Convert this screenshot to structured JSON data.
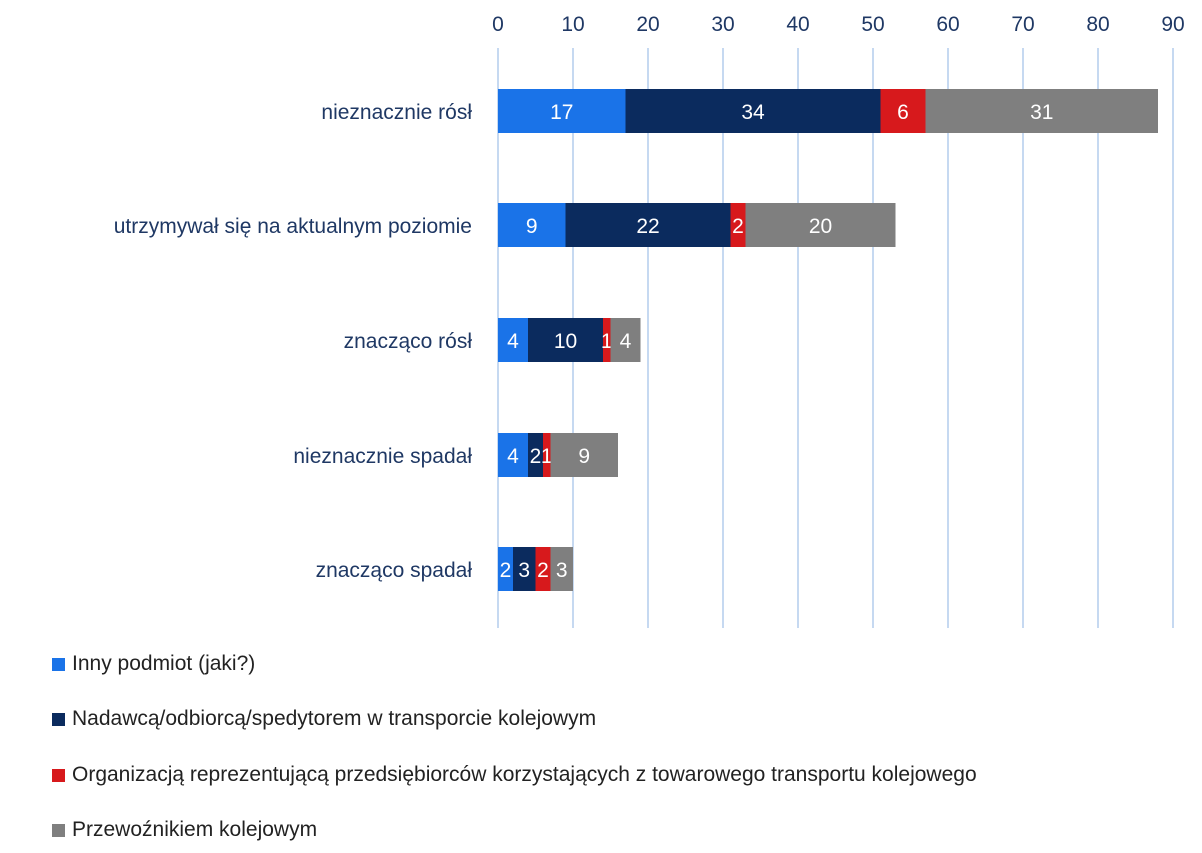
{
  "chart_data": {
    "type": "bar",
    "orientation": "horizontal",
    "stacked": true,
    "categories": [
      "nieznacznie rósł",
      "utrzymywał się na aktualnym poziomie",
      "znacząco rósł",
      "nieznacznie spadał",
      "znacząco spadał"
    ],
    "series": [
      {
        "name": "Inny podmiot (jaki?)",
        "color": "#1a73e8",
        "values": [
          17,
          9,
          4,
          4,
          2
        ]
      },
      {
        "name": "Nadawcą/odbiorcą/spedytorem w transporcie kolejowym",
        "color": "#0b2b5e",
        "values": [
          34,
          22,
          10,
          2,
          3
        ]
      },
      {
        "name": "Organizacją reprezentującą przedsiębiorców korzystających z towarowego transportu kolejowego",
        "color": "#d7191c",
        "values": [
          6,
          2,
          1,
          1,
          2
        ]
      },
      {
        "name": "Przewoźnikiem kolejowym",
        "color": "#7f7f7f",
        "values": [
          31,
          20,
          4,
          9,
          3
        ]
      }
    ],
    "xlim": [
      0,
      90
    ],
    "xticks": [
      "0",
      "10",
      "20",
      "30",
      "40",
      "50",
      "60",
      "70",
      "80",
      "90"
    ],
    "axis_position": "top",
    "grid": true,
    "legend_position": "bottom-left",
    "data_labels": true
  }
}
